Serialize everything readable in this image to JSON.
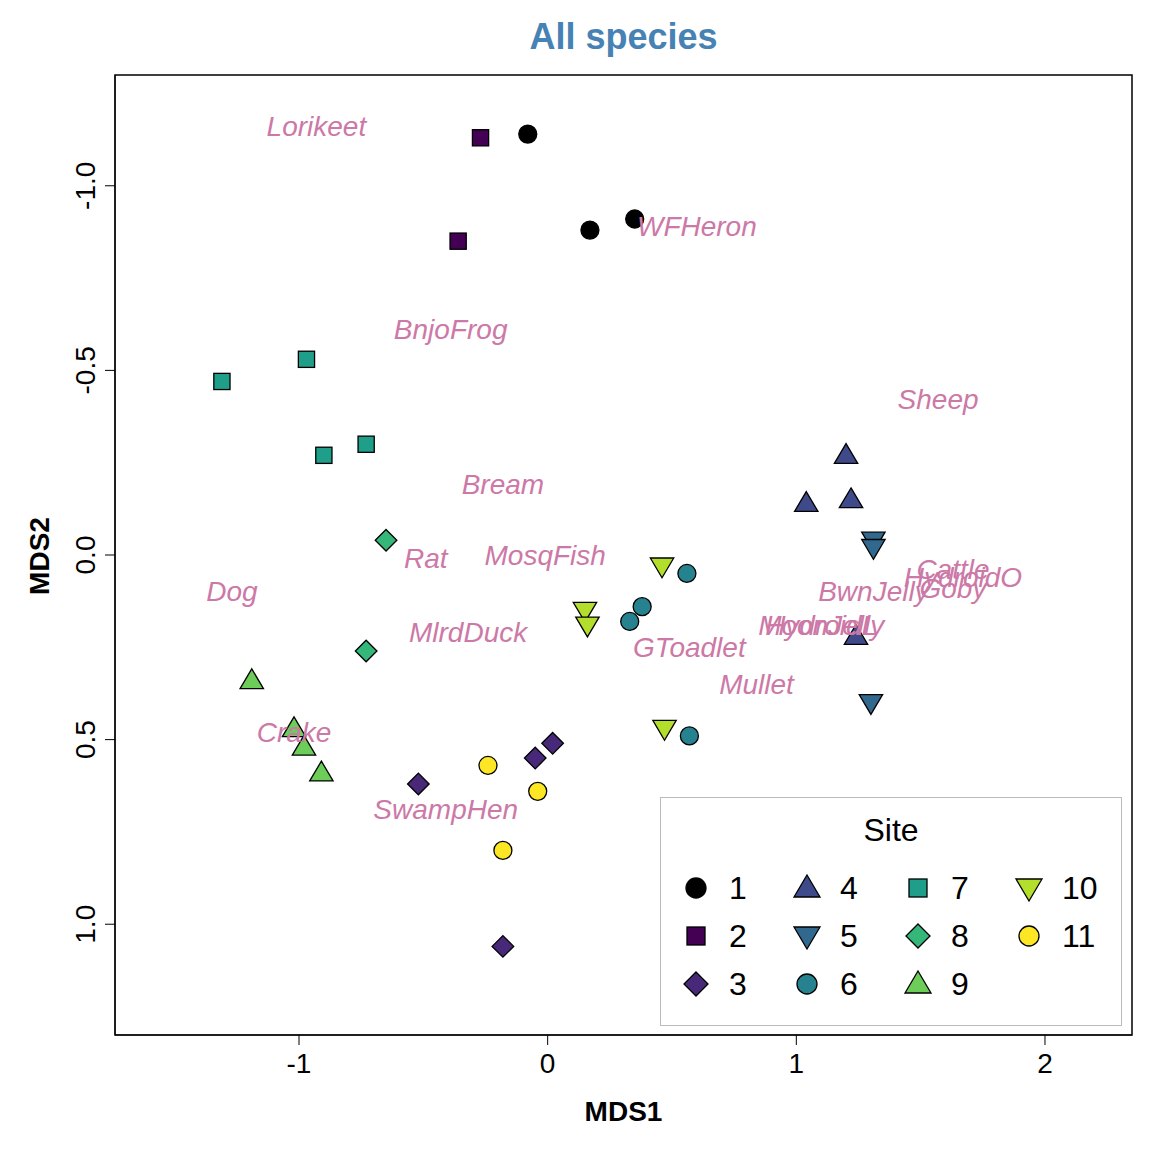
{
  "chart_data": {
    "type": "scatter",
    "title": "All species",
    "x_label": "MDS1",
    "y_label": "MDS2",
    "xlim": [
      -1.74,
      2.35
    ],
    "xticks": [
      -1,
      0,
      1,
      2
    ],
    "ylim": [
      1.3,
      -1.3
    ],
    "yticks": [
      {
        "value": -1.0,
        "label": "-1.0"
      },
      {
        "value": -0.5,
        "label": "-0.5"
      },
      {
        "value": 0,
        "label": "0.0"
      },
      {
        "value": 0.5,
        "label": "0.5"
      },
      {
        "value": 1.0,
        "label": "1.0"
      }
    ],
    "legend": "bottom right",
    "legend_title": "Site",
    "series": [
      {
        "name": "1",
        "color": "#000000",
        "marker": "circle",
        "x": [
          -0.08,
          0.17,
          0.35
        ],
        "y": [
          -1.14,
          -0.88,
          -0.91
        ]
      },
      {
        "name": "2",
        "color": "#440154",
        "marker": "square",
        "x": [
          -0.27,
          -0.36
        ],
        "y": [
          -1.13,
          -0.85
        ]
      },
      {
        "name": "3",
        "color": "#482878",
        "marker": "diamond",
        "x": [
          -0.52,
          -0.05,
          0.02,
          -0.18
        ],
        "y": [
          0.62,
          0.55,
          0.51,
          1.06
        ]
      },
      {
        "name": "4",
        "color": "#3E4A89",
        "marker": "triangle",
        "x": [
          1.2,
          1.04,
          1.22,
          1.24
        ],
        "y": [
          -0.27,
          -0.14,
          -0.15,
          0.22
        ]
      },
      {
        "name": "5",
        "color": "#31688E",
        "marker": "triangle-down",
        "x": [
          1.31,
          1.31,
          1.3
        ],
        "y": [
          -0.04,
          -0.02,
          0.4
        ]
      },
      {
        "name": "6",
        "color": "#26828E",
        "marker": "circle",
        "x": [
          0.56,
          0.38,
          0.33,
          0.57
        ],
        "y": [
          0.05,
          0.14,
          0.18,
          0.49
        ]
      },
      {
        "name": "7",
        "color": "#1F9E89",
        "marker": "square",
        "x": [
          -1.31,
          -0.97,
          -0.73,
          -0.9
        ],
        "y": [
          -0.47,
          -0.53,
          -0.3,
          -0.27
        ]
      },
      {
        "name": "8",
        "color": "#35B779",
        "marker": "diamond",
        "x": [
          -0.65,
          -0.73
        ],
        "y": [
          -0.04,
          0.26
        ]
      },
      {
        "name": "9",
        "color": "#6DCD59",
        "marker": "triangle",
        "x": [
          -1.19,
          -1.02,
          -0.98,
          -0.91
        ],
        "y": [
          0.34,
          0.47,
          0.52,
          0.59
        ]
      },
      {
        "name": "10",
        "color": "#B4DE2C",
        "marker": "triangle-down",
        "x": [
          0.46,
          0.15,
          0.16,
          0.47
        ],
        "y": [
          0.03,
          0.15,
          0.19,
          0.47
        ]
      },
      {
        "name": "11",
        "color": "#FDE725",
        "marker": "circle",
        "x": [
          -0.24,
          -0.04,
          -0.18
        ],
        "y": [
          0.57,
          0.64,
          0.8
        ]
      }
    ],
    "species": {
      "color": "#CC79A7",
      "points": [
        {
          "label": "Lorikeet",
          "x": -0.93,
          "y": -1.16
        },
        {
          "label": "WFHeron",
          "x": 0.6,
          "y": -0.89
        },
        {
          "label": "BnjoFrog",
          "x": -0.39,
          "y": -0.61
        },
        {
          "label": "Sheep",
          "x": 1.57,
          "y": -0.42
        },
        {
          "label": "Bream",
          "x": -0.18,
          "y": -0.19
        },
        {
          "label": "Rat",
          "x": -0.49,
          "y": 0.01
        },
        {
          "label": "MosqFish",
          "x": -0.01,
          "y": 0.0
        },
        {
          "label": "Dog",
          "x": -1.27,
          "y": 0.1
        },
        {
          "label": "Cattle",
          "x": 1.63,
          "y": 0.04
        },
        {
          "label": "HydroidO",
          "x": 1.67,
          "y": 0.06
        },
        {
          "label": "Goby",
          "x": 1.63,
          "y": 0.09
        },
        {
          "label": "BwnJelly",
          "x": 1.31,
          "y": 0.1
        },
        {
          "label": "MlrdDuck",
          "x": -0.32,
          "y": 0.21
        },
        {
          "label": "GToadlet",
          "x": 0.57,
          "y": 0.25
        },
        {
          "label": "MoonJelly",
          "x": 1.1,
          "y": 0.19
        },
        {
          "label": "HydroidL",
          "x": 1.1,
          "y": 0.19
        },
        {
          "label": "Mullet",
          "x": 0.84,
          "y": 0.35
        },
        {
          "label": "Crake",
          "x": -1.02,
          "y": 0.48
        },
        {
          "label": "SwampHen",
          "x": -0.41,
          "y": 0.69
        }
      ]
    }
  }
}
